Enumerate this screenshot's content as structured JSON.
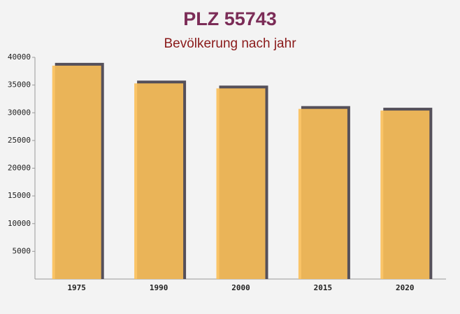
{
  "chart_data": {
    "type": "bar",
    "title": "PLZ 55743",
    "subtitle": "Bevölkerung nach jahr",
    "categories": [
      "1975",
      "1990",
      "2000",
      "2015",
      "2020"
    ],
    "values": [
      38500,
      35300,
      34400,
      30700,
      30400
    ],
    "color": "#fbbf58",
    "ylim": [
      0,
      40000
    ],
    "yticks": [
      5000,
      10000,
      15000,
      20000,
      25000,
      30000,
      35000,
      40000
    ],
    "grid": false
  }
}
